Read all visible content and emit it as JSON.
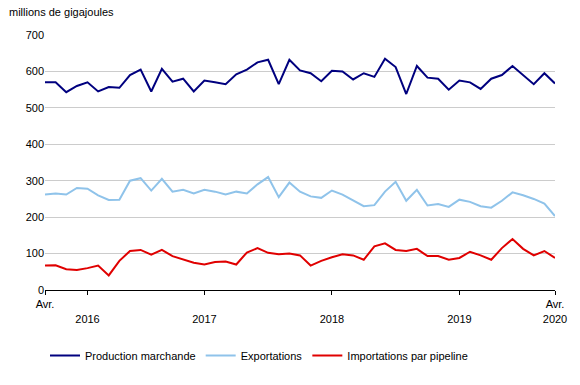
{
  "chart_data": {
    "type": "line",
    "ylabel": "millions de gigajoules",
    "categories": [
      "Avr.",
      null,
      null,
      null,
      "2016",
      null,
      null,
      null,
      null,
      null,
      null,
      null,
      null,
      null,
      null,
      "2017",
      null,
      null,
      null,
      null,
      null,
      null,
      null,
      null,
      null,
      null,
      null,
      "2018",
      null,
      null,
      null,
      null,
      null,
      null,
      null,
      null,
      null,
      null,
      null,
      "2019",
      null,
      null,
      null,
      null,
      null,
      null,
      null,
      null,
      "Avr.\n2020"
    ],
    "series": [
      {
        "name": "Production marchande",
        "color": "#00007f",
        "values": [
          570,
          570,
          543,
          560,
          570,
          545,
          557,
          555,
          590,
          605,
          545,
          607,
          572,
          580,
          545,
          575,
          570,
          565,
          592,
          605,
          625,
          632,
          565,
          632,
          603,
          595,
          573,
          602,
          600,
          578,
          595,
          585,
          635,
          612,
          538,
          615,
          583,
          580,
          550,
          575,
          570,
          552,
          580,
          590,
          615,
          590,
          565,
          595,
          567
        ]
      },
      {
        "name": "Exportations",
        "color": "#8fc3ea",
        "values": [
          262,
          265,
          262,
          280,
          278,
          260,
          247,
          248,
          300,
          307,
          273,
          305,
          270,
          275,
          265,
          275,
          270,
          262,
          270,
          265,
          290,
          310,
          255,
          295,
          270,
          257,
          253,
          273,
          262,
          245,
          230,
          233,
          270,
          297,
          245,
          275,
          232,
          236,
          228,
          248,
          242,
          230,
          226,
          245,
          268,
          260,
          250,
          237,
          203
        ]
      },
      {
        "name": "Importations par pipeline",
        "color": "#e00000",
        "values": [
          67,
          68,
          57,
          55,
          60,
          67,
          40,
          80,
          107,
          110,
          97,
          110,
          93,
          85,
          75,
          70,
          77,
          78,
          70,
          103,
          115,
          102,
          98,
          100,
          95,
          67,
          80,
          90,
          98,
          95,
          83,
          120,
          128,
          110,
          107,
          113,
          93,
          93,
          83,
          88,
          105,
          95,
          83,
          115,
          140,
          113,
          95,
          107,
          88
        ]
      }
    ],
    "ylim": [
      0,
      700
    ],
    "yticks": [
      0,
      100,
      200,
      300,
      400,
      500,
      600,
      700
    ],
    "grid": true,
    "legend": "bottom"
  }
}
